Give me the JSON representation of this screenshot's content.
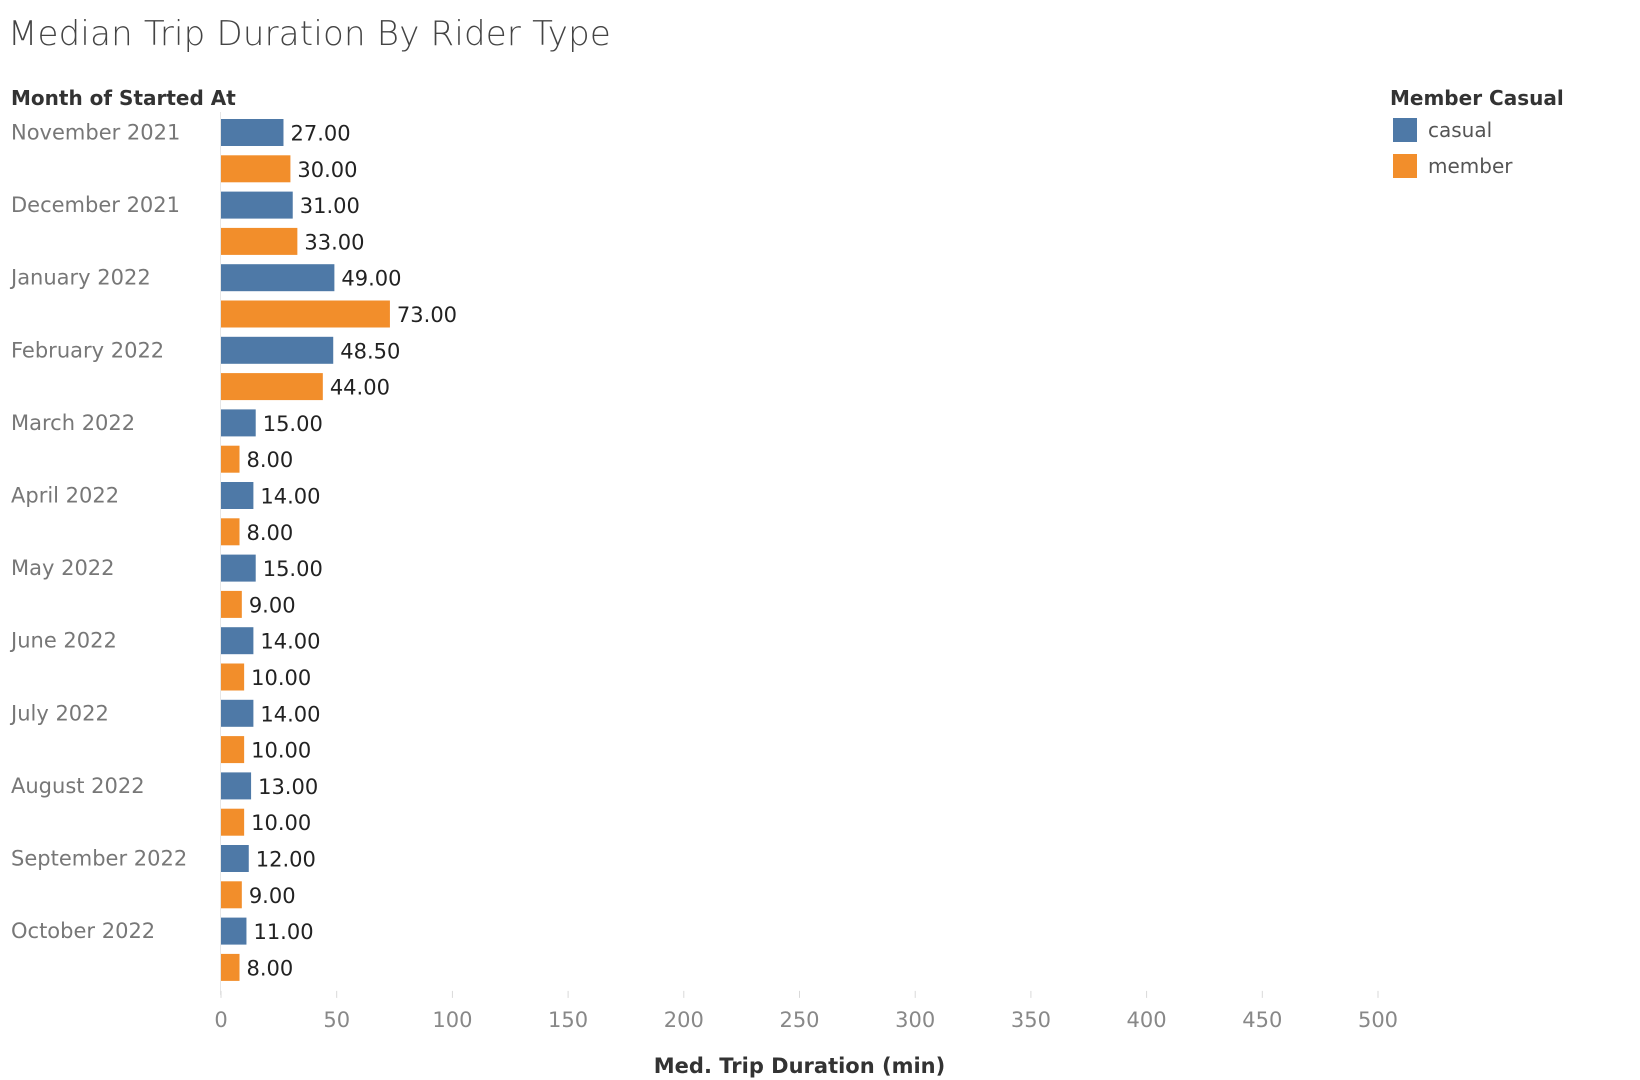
{
  "chart_data": {
    "type": "bar",
    "orientation": "horizontal",
    "title": "Median Trip Duration By Rider Type",
    "row_header": "Month of Started At",
    "xlabel": "Med. Trip Duration (min)",
    "ylabel": "",
    "xlim": [
      0,
      500
    ],
    "x_ticks": [
      "0",
      "50",
      "100",
      "150",
      "200",
      "250",
      "300",
      "350",
      "400",
      "450",
      "500"
    ],
    "legend_title": "Member Casual",
    "legend_position": "top-right",
    "grid": false,
    "categories": [
      "November 2021",
      "December 2021",
      "January 2022",
      "February 2022",
      "March 2022",
      "April 2022",
      "May 2022",
      "June 2022",
      "July 2022",
      "August 2022",
      "September 2022",
      "October 2022"
    ],
    "series": [
      {
        "name": "casual",
        "color": "#4e79a7",
        "values": [
          27,
          31,
          49,
          48.5,
          15,
          14,
          15,
          14,
          14,
          13,
          12,
          11
        ],
        "labels": [
          "27.00",
          "31.00",
          "49.00",
          "48.50",
          "15.00",
          "14.00",
          "15.00",
          "14.00",
          "14.00",
          "13.00",
          "12.00",
          "11.00"
        ]
      },
      {
        "name": "member",
        "color": "#f28e2b",
        "values": [
          30,
          33,
          73,
          44,
          8,
          8,
          9,
          10,
          10,
          10,
          9,
          8
        ],
        "labels": [
          "30.00",
          "33.00",
          "73.00",
          "44.00",
          "8.00",
          "8.00",
          "9.00",
          "10.00",
          "10.00",
          "10.00",
          "9.00",
          "8.00"
        ]
      }
    ]
  }
}
